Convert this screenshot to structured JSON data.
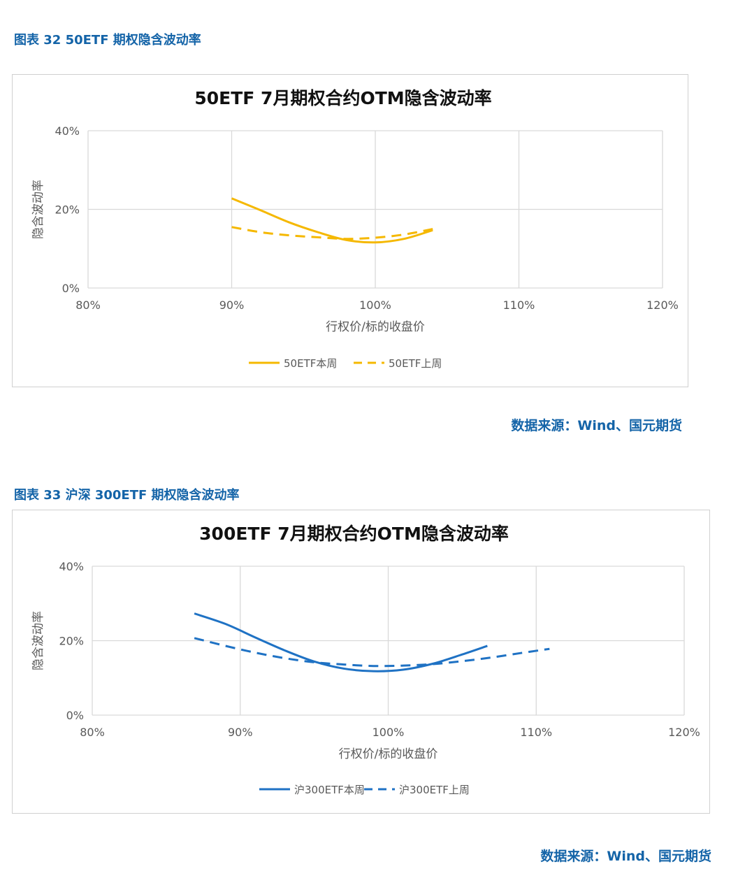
{
  "figures": [
    {
      "caption": "图表 32  50ETF 期权隐含波动率",
      "source": "数据来源：Wind、国元期货",
      "chart_data": {
        "type": "line",
        "title": "50ETF  7月期权合约OTM隐含波动率",
        "xlabel": "行权价/标的收盘价",
        "ylabel": "隐含波动率",
        "xlim": [
          0.8,
          1.2
        ],
        "ylim": [
          0,
          0.4
        ],
        "x_ticks": [
          "80%",
          "90%",
          "100%",
          "110%",
          "120%"
        ],
        "y_ticks": [
          "0%",
          "20%",
          "40%"
        ],
        "grid": true,
        "legend_position": "bottom",
        "series": [
          {
            "name": "50ETF本周",
            "style": "solid",
            "color": "#f5b800",
            "points": [
              [
                0.9,
                0.228
              ],
              [
                0.92,
                0.198
              ],
              [
                0.94,
                0.167
              ],
              [
                0.96,
                0.142
              ],
              [
                0.98,
                0.122
              ],
              [
                1.0,
                0.116
              ],
              [
                1.02,
                0.125
              ],
              [
                1.04,
                0.147
              ]
            ]
          },
          {
            "name": "50ETF上周",
            "style": "dashed",
            "color": "#f5b800",
            "points": [
              [
                0.9,
                0.155
              ],
              [
                0.92,
                0.142
              ],
              [
                0.94,
                0.134
              ],
              [
                0.96,
                0.129
              ],
              [
                0.98,
                0.125
              ],
              [
                1.0,
                0.128
              ],
              [
                1.02,
                0.136
              ],
              [
                1.04,
                0.15
              ]
            ]
          }
        ]
      }
    },
    {
      "caption": "图表 33  沪深 300ETF 期权隐含波动率",
      "source": "数据来源：Wind、国元期货",
      "chart_data": {
        "type": "line",
        "title": "300ETF  7月期权合约OTM隐含波动率",
        "xlabel": "行权价/标的收盘价",
        "ylabel": "隐含波动率",
        "xlim": [
          0.8,
          1.2
        ],
        "ylim": [
          0,
          0.4
        ],
        "x_ticks": [
          "80%",
          "90%",
          "100%",
          "110%",
          "120%"
        ],
        "y_ticks": [
          "0%",
          "20%",
          "40%"
        ],
        "grid": true,
        "legend_position": "bottom",
        "series": [
          {
            "name": "沪300ETF本周",
            "style": "solid",
            "color": "#1f72c4",
            "points": [
              [
                0.869,
                0.273
              ],
              [
                0.89,
                0.245
              ],
              [
                0.91,
                0.209
              ],
              [
                0.93,
                0.174
              ],
              [
                0.95,
                0.144
              ],
              [
                0.97,
                0.125
              ],
              [
                0.99,
                0.118
              ],
              [
                1.01,
                0.122
              ],
              [
                1.03,
                0.138
              ],
              [
                1.05,
                0.163
              ],
              [
                1.067,
                0.186
              ]
            ]
          },
          {
            "name": "沪300ETF上周",
            "style": "dashed",
            "color": "#1f72c4",
            "points": [
              [
                0.869,
                0.207
              ],
              [
                0.89,
                0.186
              ],
              [
                0.91,
                0.168
              ],
              [
                0.93,
                0.153
              ],
              [
                0.95,
                0.142
              ],
              [
                0.97,
                0.136
              ],
              [
                0.99,
                0.132
              ],
              [
                1.01,
                0.133
              ],
              [
                1.03,
                0.137
              ],
              [
                1.05,
                0.145
              ],
              [
                1.07,
                0.155
              ],
              [
                1.09,
                0.167
              ],
              [
                1.109,
                0.178
              ]
            ]
          }
        ]
      }
    }
  ]
}
